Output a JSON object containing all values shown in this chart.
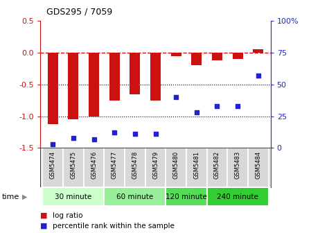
{
  "title": "GDS295 / 7059",
  "samples": [
    "GSM5474",
    "GSM5475",
    "GSM5476",
    "GSM5477",
    "GSM5478",
    "GSM5479",
    "GSM5480",
    "GSM5481",
    "GSM5482",
    "GSM5483",
    "GSM5484"
  ],
  "log_ratio": [
    -1.12,
    -1.05,
    -1.0,
    -0.75,
    -0.65,
    -0.75,
    -0.05,
    -0.2,
    -0.12,
    -0.1,
    0.05
  ],
  "percentile": [
    3,
    8,
    7,
    12,
    11,
    11,
    40,
    28,
    33,
    33,
    57
  ],
  "ylim_left": [
    -1.5,
    0.5
  ],
  "ylim_right": [
    0,
    100
  ],
  "bar_color": "#cc1111",
  "scatter_color": "#2222cc",
  "dashed_color": "#cc1111",
  "time_groups": [
    {
      "label": "30 minute",
      "start": 0,
      "end": 2,
      "color": "#ccffcc"
    },
    {
      "label": "60 minute",
      "start": 3,
      "end": 5,
      "color": "#99ee99"
    },
    {
      "label": "120 minute",
      "start": 6,
      "end": 7,
      "color": "#55dd55"
    },
    {
      "label": "240 minute",
      "start": 8,
      "end": 10,
      "color": "#33cc33"
    }
  ],
  "legend_log_ratio": "log ratio",
  "legend_percentile": "percentile rank within the sample",
  "xlabel_time": "time",
  "yticks_left": [
    -1.5,
    -1.0,
    -0.5,
    0.0,
    0.5
  ],
  "yticks_right_vals": [
    0,
    25,
    50,
    75,
    100
  ],
  "yticks_right_labels": [
    "0",
    "25",
    "50",
    "75",
    "100%"
  ],
  "label_bg": "#d8d8d8",
  "label_border": "#aaaaaa"
}
